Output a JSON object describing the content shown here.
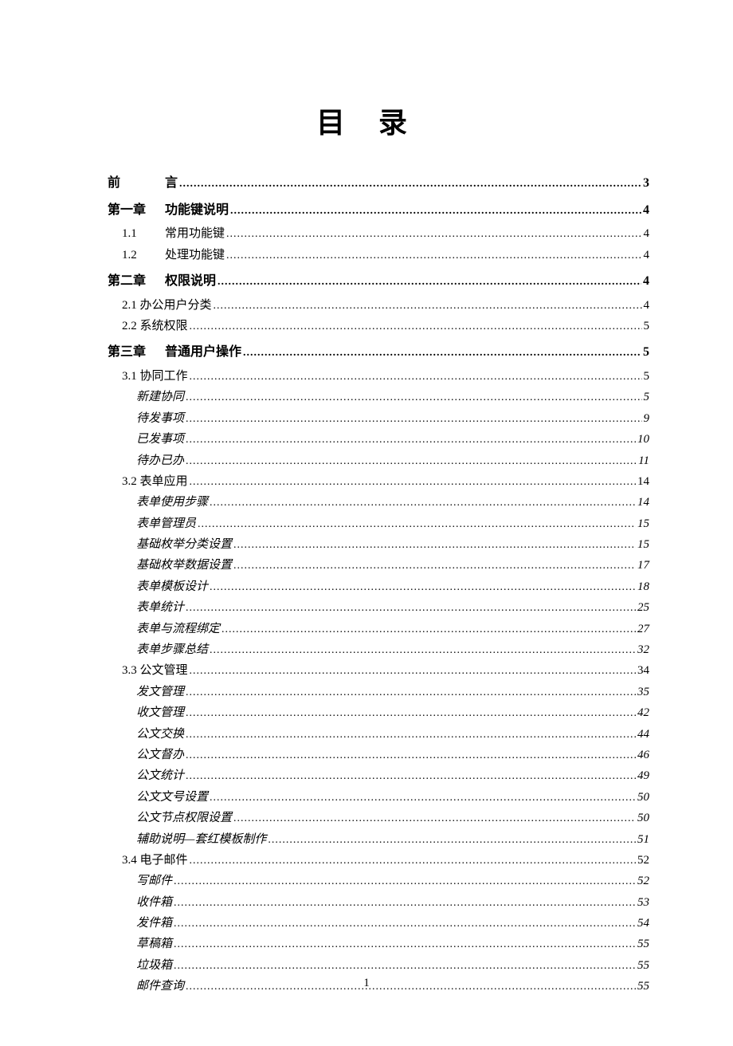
{
  "title": "目录",
  "page_number": "1",
  "entries": [
    {
      "level": 0,
      "prefix": "前",
      "text": "言",
      "page": "3",
      "wideprefix": true
    },
    {
      "level": 0,
      "prefix": "第一章",
      "text": "功能键说明",
      "page": "4"
    },
    {
      "level": 1,
      "prefix": "1.1",
      "text": "常用功能键",
      "page": "4"
    },
    {
      "level": 1,
      "prefix": "1.2",
      "text": "处理功能键",
      "page": "4"
    },
    {
      "level": 0,
      "prefix": "第二章",
      "text": "权限说明",
      "page": "4"
    },
    {
      "level": "1n",
      "prefix": "",
      "text": "2.1 办公用户分类",
      "page": "4"
    },
    {
      "level": "1n",
      "prefix": "",
      "text": "2.2 系统权限",
      "page": "5"
    },
    {
      "level": 0,
      "prefix": "第三章",
      "text": "普通用户操作",
      "page": "5"
    },
    {
      "level": "1n",
      "prefix": "",
      "text": "3.1 协同工作",
      "page": "5"
    },
    {
      "level": 2,
      "prefix": "",
      "text": "新建协同",
      "page": "5"
    },
    {
      "level": 2,
      "prefix": "",
      "text": "待发事项",
      "page": "9"
    },
    {
      "level": 2,
      "prefix": "",
      "text": "已发事项",
      "page": "10"
    },
    {
      "level": 2,
      "prefix": "",
      "text": "待办已办",
      "page": "11"
    },
    {
      "level": "1n",
      "prefix": "",
      "text": "3.2 表单应用",
      "page": "14"
    },
    {
      "level": 2,
      "prefix": "",
      "text": "表单使用步骤",
      "page": "14"
    },
    {
      "level": 2,
      "prefix": "",
      "text": "表单管理员",
      "page": "15"
    },
    {
      "level": 2,
      "prefix": "",
      "text": "基础枚举分类设置",
      "page": "15"
    },
    {
      "level": 2,
      "prefix": "",
      "text": "基础枚举数据设置",
      "page": "17"
    },
    {
      "level": 2,
      "prefix": "",
      "text": "表单模板设计",
      "page": "18"
    },
    {
      "level": 2,
      "prefix": "",
      "text": "表单统计",
      "page": "25"
    },
    {
      "level": 2,
      "prefix": "",
      "text": "表单与流程绑定",
      "page": "27"
    },
    {
      "level": 2,
      "prefix": "",
      "text": "表单步骤总结",
      "page": "32"
    },
    {
      "level": "1n",
      "prefix": "",
      "text": "3.3 公文管理",
      "page": "34"
    },
    {
      "level": 2,
      "prefix": "",
      "text": "发文管理",
      "page": "35"
    },
    {
      "level": 2,
      "prefix": "",
      "text": "收文管理",
      "page": "42"
    },
    {
      "level": 2,
      "prefix": "",
      "text": "公文交换",
      "page": "44"
    },
    {
      "level": 2,
      "prefix": "",
      "text": "公文督办",
      "page": "46"
    },
    {
      "level": 2,
      "prefix": "",
      "text": "公文统计",
      "page": "49"
    },
    {
      "level": 2,
      "prefix": "",
      "text": "公文文号设置",
      "page": "50"
    },
    {
      "level": 2,
      "prefix": "",
      "text": "公文节点权限设置",
      "page": "50"
    },
    {
      "level": 2,
      "prefix": "",
      "text": "辅助说明—套红模板制作",
      "page": "51"
    },
    {
      "level": "1n",
      "prefix": "",
      "text": "3.4 电子邮件",
      "page": "52"
    },
    {
      "level": 2,
      "prefix": "",
      "text": "写邮件",
      "page": "52"
    },
    {
      "level": 2,
      "prefix": "",
      "text": "收件箱",
      "page": "53"
    },
    {
      "level": 2,
      "prefix": "",
      "text": "发件箱",
      "page": "54"
    },
    {
      "level": 2,
      "prefix": "",
      "text": "草稿箱",
      "page": "55"
    },
    {
      "level": 2,
      "prefix": "",
      "text": "垃圾箱",
      "page": "55"
    },
    {
      "level": 2,
      "prefix": "",
      "text": "邮件查询",
      "page": "55"
    }
  ]
}
